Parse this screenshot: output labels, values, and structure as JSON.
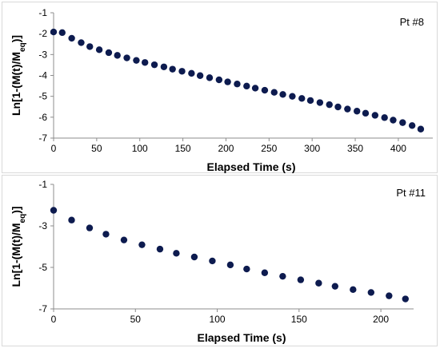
{
  "chart_data": [
    {
      "type": "scatter",
      "label": "Pt #8",
      "xlabel": "Elapsed Time (s)",
      "ylabel_parts": [
        "Ln[1-(M(t)/M",
        "eq",
        ")]"
      ],
      "xlim": [
        0,
        440
      ],
      "ylim": [
        -7,
        -1
      ],
      "xticks": [
        0,
        50,
        100,
        150,
        200,
        250,
        300,
        350,
        400
      ],
      "yticks": [
        -7,
        -6,
        -5,
        -4,
        -3,
        -2,
        -1
      ],
      "marker_color": "#0d1b4f",
      "series": [
        {
          "x": [
            0,
            10,
            21,
            32,
            42,
            53,
            64,
            74,
            85,
            96,
            106,
            117,
            128,
            138,
            149,
            160,
            170,
            181,
            192,
            202,
            213,
            224,
            234,
            245,
            256,
            266,
            277,
            288,
            298,
            309,
            320,
            330,
            341,
            352,
            362,
            373,
            384,
            394,
            405,
            416,
            426
          ],
          "y": [
            -1.92,
            -1.95,
            -2.22,
            -2.43,
            -2.62,
            -2.77,
            -2.91,
            -3.04,
            -3.16,
            -3.28,
            -3.38,
            -3.49,
            -3.59,
            -3.7,
            -3.8,
            -3.9,
            -4.01,
            -4.11,
            -4.21,
            -4.31,
            -4.41,
            -4.51,
            -4.61,
            -4.71,
            -4.81,
            -4.91,
            -5.0,
            -5.1,
            -5.2,
            -5.3,
            -5.4,
            -5.51,
            -5.61,
            -5.71,
            -5.81,
            -5.91,
            -6.02,
            -6.14,
            -6.26,
            -6.4,
            -6.57
          ]
        }
      ]
    },
    {
      "type": "scatter",
      "label": "Pt #11",
      "xlabel": "Elapsed Time (s)",
      "ylabel_parts": [
        "Ln[1-(M(t)/M",
        "eq",
        ")]"
      ],
      "xlim": [
        0,
        220
      ],
      "ylim": [
        -7,
        -1
      ],
      "xticks": [
        0,
        50,
        100,
        150,
        200
      ],
      "yticks": [
        -7,
        -5,
        -3,
        -1
      ],
      "marker_color": "#0d1b4f",
      "series": [
        {
          "x": [
            0,
            11,
            22,
            32,
            43,
            54,
            65,
            75,
            86,
            97,
            108,
            118,
            129,
            140,
            151,
            162,
            172,
            183,
            194,
            205,
            215
          ],
          "y": [
            -2.25,
            -2.72,
            -3.1,
            -3.4,
            -3.68,
            -3.91,
            -4.12,
            -4.32,
            -4.5,
            -4.69,
            -4.88,
            -5.08,
            -5.26,
            -5.43,
            -5.6,
            -5.76,
            -5.91,
            -6.07,
            -6.21,
            -6.37,
            -6.52
          ]
        }
      ]
    }
  ]
}
